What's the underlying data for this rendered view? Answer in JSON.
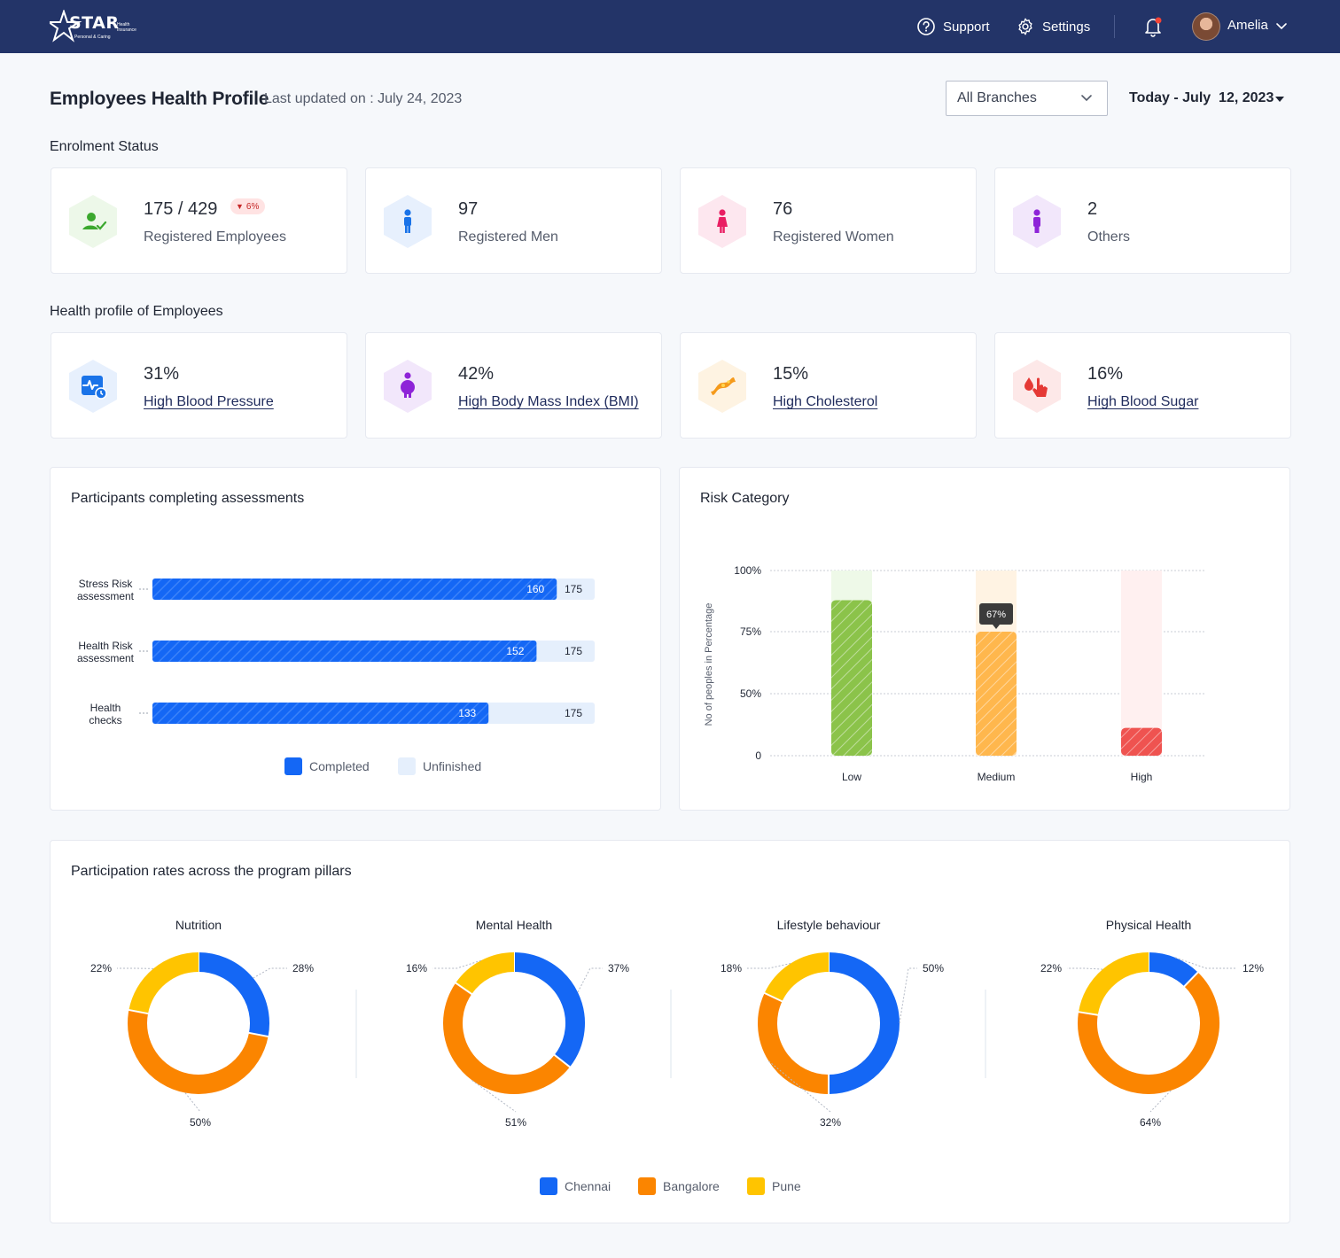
{
  "header": {
    "logo_text": "STAR",
    "logo_subtext": "Health Insurance",
    "logo_tagline": "Personal & Caring",
    "support_label": "Support",
    "settings_label": "Settings",
    "user_name": "Amelia"
  },
  "page": {
    "title": "Employees Health Profile",
    "last_updated": "Last updated on : July 24, 2023",
    "branch_select": "All Branches",
    "date_range": "Today - July  12, 2023"
  },
  "enrolment": {
    "section_title": "Enrolment Status",
    "cards": [
      {
        "value": "175 / 429",
        "label": "Registered Employees",
        "badge": "6%",
        "icon": "user-check-icon",
        "color": "#3BA82E",
        "bg": "#EDF8E9"
      },
      {
        "value": "97",
        "label": "Registered Men",
        "icon": "male-icon",
        "color": "#1A73E8",
        "bg": "#E7F0FD"
      },
      {
        "value": "76",
        "label": "Registered Women",
        "icon": "female-icon",
        "color": "#E91E63",
        "bg": "#FDE7EF"
      },
      {
        "value": "2",
        "label": "Others",
        "icon": "person-icon",
        "color": "#8E24D8",
        "bg": "#F2E7FB"
      }
    ]
  },
  "health_profile": {
    "section_title": "Health profile of Employees",
    "cards": [
      {
        "value": "31%",
        "label": "High Blood Pressure",
        "icon": "heart-monitor-icon",
        "color": "#1A73E8",
        "bg": "#E7F0FD"
      },
      {
        "value": "42%",
        "label": "High Body Mass Index (BMI)",
        "icon": "obesity-icon",
        "color": "#8E24D8",
        "bg": "#F2E7FB"
      },
      {
        "value": "15%",
        "label": "High Cholesterol",
        "icon": "artery-icon",
        "color": "#F59A1B",
        "bg": "#FEF3E2"
      },
      {
        "value": "16%",
        "label": "High Blood Sugar",
        "icon": "blood-drop-finger-icon",
        "color": "#E53935",
        "bg": "#FDE8E8"
      }
    ]
  },
  "assessments": {
    "title": "Participants completing assessments",
    "legend_completed": "Completed",
    "legend_unfinished": "Unfinished",
    "colors": {
      "completed": "#1467F5",
      "unfinished": "#E5EFFC"
    }
  },
  "risk": {
    "title": "Risk Category",
    "tooltip": "67%"
  },
  "pillars": {
    "title": "Participation rates across the program pillars",
    "colors": {
      "Chennai": "#1467F5",
      "Bangalore": "#FB8500",
      "Pune": "#FFC400"
    }
  },
  "chart_data": [
    {
      "type": "bar",
      "orientation": "horizontal",
      "title": "Participants completing assessments",
      "categories": [
        "Stress Risk assessment",
        "Health Risk assessment",
        "Health checks"
      ],
      "series": [
        {
          "name": "Completed",
          "values": [
            160,
            152,
            133
          ]
        },
        {
          "name": "Unfinished",
          "values": [
            175,
            175,
            175
          ]
        }
      ],
      "xlim": [
        0,
        175
      ],
      "legend": "bottom-center"
    },
    {
      "type": "bar",
      "title": "Risk Category",
      "categories": [
        "Low",
        "Medium",
        "High"
      ],
      "values": [
        84,
        67,
        15
      ],
      "ylabel": "No of peoples in Percentage",
      "yticks": [
        "0",
        "50%",
        "75%",
        "100%"
      ],
      "ylim": [
        0,
        100
      ],
      "grid": true,
      "colors": [
        "#8BC34A",
        "#FFB74D",
        "#EF5350"
      ],
      "track_colors": [
        "#EEF9E8",
        "#FFF3E3",
        "#FFF0F0"
      ]
    },
    {
      "type": "pie",
      "donut": true,
      "title": "Nutrition",
      "segments": [
        {
          "name": "Chennai",
          "value": 28
        },
        {
          "name": "Bangalore",
          "value": 50
        },
        {
          "name": "Pune",
          "value": 22
        }
      ]
    },
    {
      "type": "pie",
      "donut": true,
      "title": "Mental Health",
      "segments": [
        {
          "name": "Chennai",
          "value": 37
        },
        {
          "name": "Bangalore",
          "value": 51
        },
        {
          "name": "Pune",
          "value": 16
        }
      ]
    },
    {
      "type": "pie",
      "donut": true,
      "title": "Lifestyle behaviour",
      "segments": [
        {
          "name": "Chennai",
          "value": 50
        },
        {
          "name": "Bangalore",
          "value": 32
        },
        {
          "name": "Pune",
          "value": 18
        }
      ]
    },
    {
      "type": "pie",
      "donut": true,
      "title": "Physical Health",
      "segments": [
        {
          "name": "Chennai",
          "value": 12
        },
        {
          "name": "Bangalore",
          "value": 64
        },
        {
          "name": "Pune",
          "value": 22
        }
      ]
    }
  ]
}
